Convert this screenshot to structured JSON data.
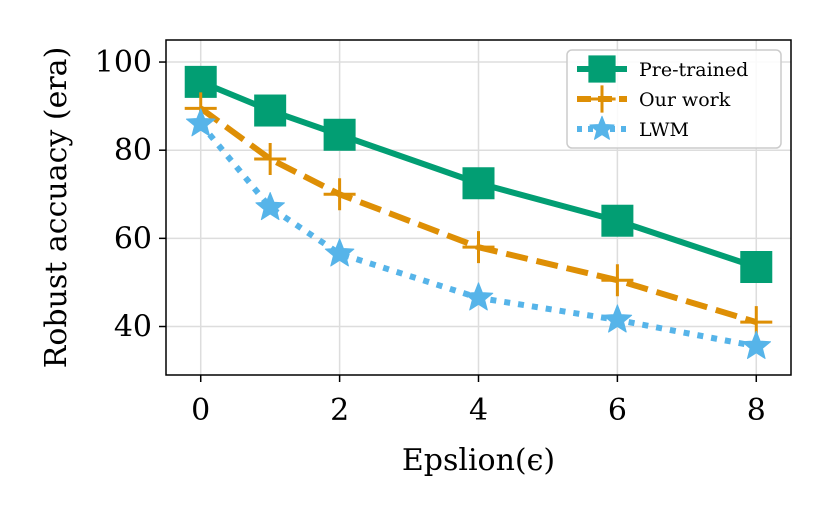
{
  "chart_data": {
    "type": "line",
    "title": "",
    "xlabel": "Epslion(ϵ)",
    "ylabel": "Robust accuacy (era)",
    "x": [
      0,
      1,
      2,
      4,
      6,
      8
    ],
    "xticks": [
      0,
      2,
      4,
      6,
      8
    ],
    "yticks": [
      40,
      60,
      80,
      100
    ],
    "xlim": [
      -0.5,
      8.5
    ],
    "ylim": [
      29,
      105
    ],
    "grid": true,
    "legend_position": "top-right",
    "series": [
      {
        "name": "Pre-trained",
        "color": "#029e73",
        "style": "solid",
        "marker": "square",
        "values": [
          95.5,
          89,
          83.5,
          72.5,
          64,
          53.5
        ]
      },
      {
        "name": "Our work",
        "color": "#de8f05",
        "style": "dashed",
        "marker": "plus",
        "values": [
          89.5,
          78,
          70,
          58,
          50.5,
          41
        ]
      },
      {
        "name": "LWM",
        "color": "#56b4e9",
        "style": "dotted",
        "marker": "star",
        "values": [
          86,
          67,
          56.5,
          46.5,
          41.5,
          35.5
        ]
      }
    ]
  }
}
